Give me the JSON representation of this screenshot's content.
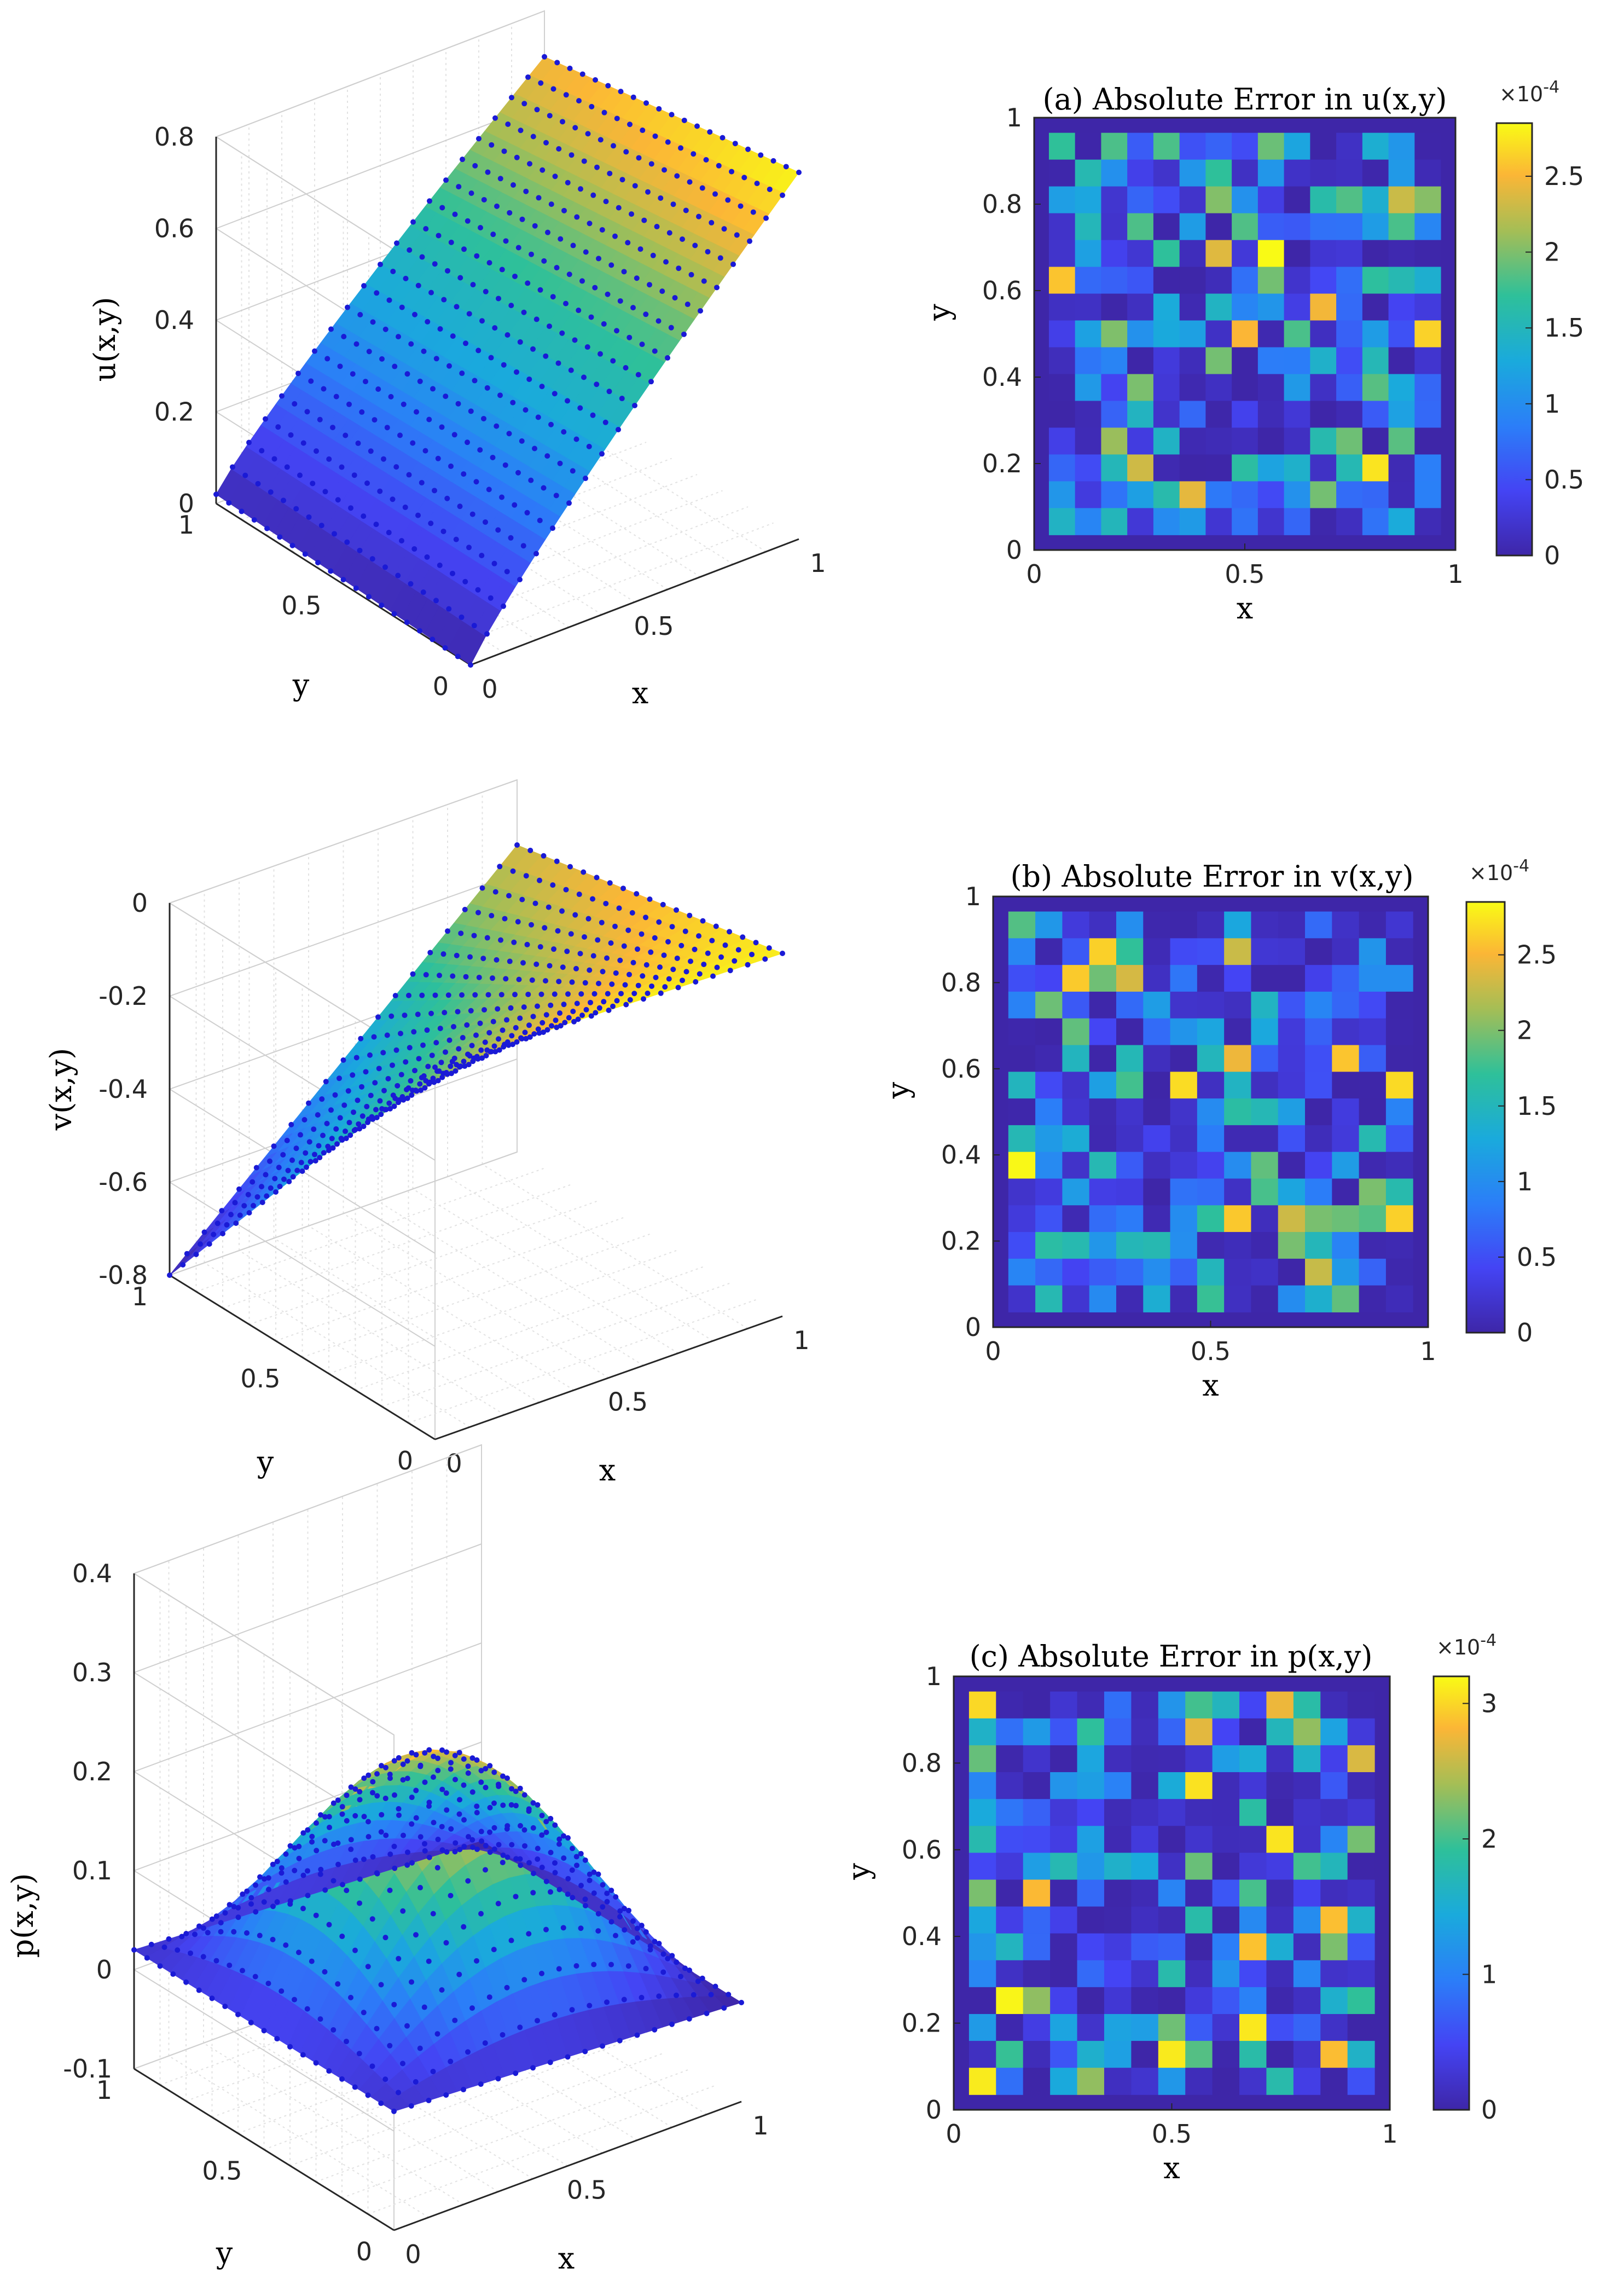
{
  "chart_data": [
    {
      "id": "surf_u",
      "type": "surface3d",
      "zlabel": "u(x,y)",
      "xlabel": "x",
      "ylabel": "y",
      "xlim": [
        0,
        1
      ],
      "ylim": [
        0,
        1
      ],
      "zlim": [
        0,
        0.8
      ],
      "x_ticks": [
        "0",
        "0.5",
        "1"
      ],
      "y_ticks": [
        "0",
        "0.5",
        "1"
      ],
      "z_ticks": [
        "0",
        "0.2",
        "0.4",
        "0.6",
        "0.8"
      ],
      "function": "u",
      "value_range": [
        0,
        0.8
      ]
    },
    {
      "id": "heat_u",
      "type": "heatmap",
      "title": "(a) Absolute Error in u(x,y)",
      "xlabel": "x",
      "ylabel": "y",
      "x_ticks": [
        "0",
        "0.5",
        "1"
      ],
      "y_ticks": [
        "0",
        "0.2",
        "0.4",
        "0.6",
        "0.8",
        "1"
      ],
      "colorbar_ticks": [
        "0",
        "0.5",
        "1",
        "1.5",
        "2",
        "2.5"
      ],
      "colorbar_max": 2.85,
      "colorbar_exponent": "×10",
      "exponent_power": "-4",
      "seed": 11
    },
    {
      "id": "surf_v",
      "type": "surface3d",
      "zlabel": "v(x,y)",
      "xlabel": "x",
      "ylabel": "y",
      "xlim": [
        0,
        1
      ],
      "ylim": [
        0,
        1
      ],
      "zlim": [
        -0.8,
        0
      ],
      "x_ticks": [
        "0",
        "0.5",
        "1"
      ],
      "y_ticks": [
        "0",
        "0.5",
        "1"
      ],
      "z_ticks": [
        "0",
        "-0.2",
        "-0.4",
        "-0.6",
        "-0.8"
      ],
      "function": "v",
      "value_range": [
        -0.8,
        0
      ]
    },
    {
      "id": "heat_v",
      "type": "heatmap",
      "title": "(b) Absolute Error in v(x,y)",
      "xlabel": "x",
      "ylabel": "y",
      "x_ticks": [
        "0",
        "0.5",
        "1"
      ],
      "y_ticks": [
        "0",
        "0.2",
        "0.4",
        "0.6",
        "0.8",
        "1"
      ],
      "colorbar_ticks": [
        "0",
        "0.5",
        "1",
        "1.5",
        "2",
        "2.5"
      ],
      "colorbar_max": 2.85,
      "colorbar_exponent": "×10",
      "exponent_power": "-4",
      "seed": 23
    },
    {
      "id": "surf_p",
      "type": "surface3d",
      "zlabel": "p(x,y)",
      "xlabel": "x",
      "ylabel": "y",
      "xlim": [
        0,
        1
      ],
      "ylim": [
        0,
        1
      ],
      "zlim": [
        -0.1,
        0.4
      ],
      "x_ticks": [
        "0",
        "0.5",
        "1"
      ],
      "y_ticks": [
        "0",
        "0.5",
        "1"
      ],
      "z_ticks": [
        "0.4",
        "0.3",
        "0.2",
        "0.1",
        "0",
        "-0.1"
      ],
      "function": "p",
      "value_range": [
        0,
        0.25
      ]
    },
    {
      "id": "heat_p",
      "type": "heatmap",
      "title": "(c) Absolute Error in p(x,y)",
      "xlabel": "x",
      "ylabel": "y",
      "x_ticks": [
        "0",
        "0.5",
        "1"
      ],
      "y_ticks": [
        "0",
        "0.2",
        "0.4",
        "0.6",
        "0.8",
        "1"
      ],
      "colorbar_ticks": [
        "0",
        "1",
        "2",
        "3"
      ],
      "colorbar_max": 3.2,
      "colorbar_exponent": "×10",
      "exponent_power": "-4",
      "seed": 37
    }
  ]
}
